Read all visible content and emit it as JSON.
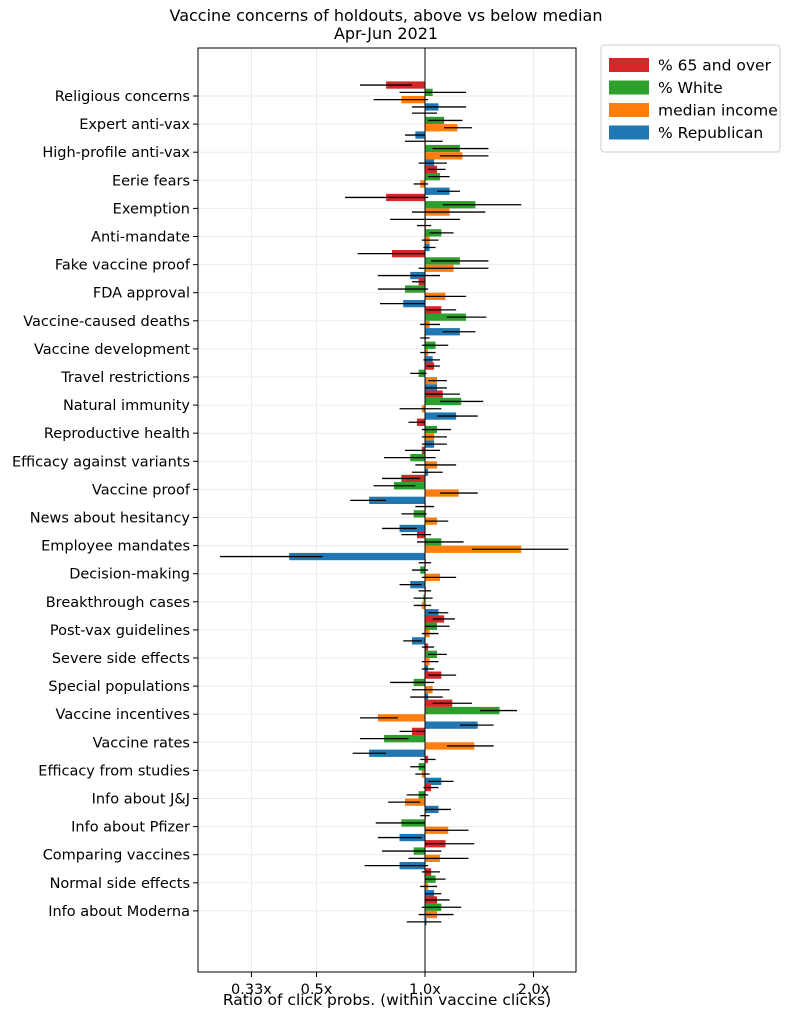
{
  "chart_data": {
    "type": "bar",
    "orientation": "horizontal",
    "title": "Vaccine concerns of holdouts, above vs below median",
    "subtitle": "Apr-Jun 2021",
    "xlabel": "Ratio of click probs. (within vaccine clicks)",
    "x_scale": "log2",
    "xlim": [
      0.25,
      2.7
    ],
    "xticks": [
      {
        "value": 0.33,
        "label": "0.33x"
      },
      {
        "value": 0.5,
        "label": "0.5x"
      },
      {
        "value": 1.0,
        "label": "1.0x"
      },
      {
        "value": 2.0,
        "label": "2.0x"
      }
    ],
    "baseline": 1.0,
    "grid": true,
    "legend_position": "outside-top-right",
    "categories": [
      "Religious concerns",
      "Expert anti-vax",
      "High-profile anti-vax",
      "Eerie fears",
      "Exemption",
      "Anti-mandate",
      "Fake vaccine proof",
      "FDA approval",
      "Vaccine-caused deaths",
      "Vaccine development",
      "Travel restrictions",
      "Natural immunity",
      "Reproductive health",
      "Efficacy against variants",
      "Vaccine proof",
      "News about hesitancy",
      "Employee mandates",
      "Decision-making",
      "Breakthrough cases",
      "Post-vax guidelines",
      "Severe side effects",
      "Special populations",
      "Vaccine incentives",
      "Vaccine rates",
      "Efficacy from studies",
      "Info about J&J",
      "Info about Pfizer",
      "Comparing vaccines",
      "Normal side effects",
      "Info about Moderna"
    ],
    "series": [
      {
        "name": "% 65 and over",
        "color": "#d62728",
        "values": [
          0.78,
          1.0,
          1.0,
          1.08,
          0.78,
          1.0,
          0.81,
          0.96,
          1.11,
          1.0,
          1.06,
          1.12,
          0.95,
          0.98,
          0.86,
          1.0,
          0.95,
          1.0,
          1.0,
          1.13,
          1.02,
          1.11,
          1.19,
          0.92,
          1.02,
          1.04,
          1.0,
          1.14,
          1.04,
          1.08
        ],
        "lo": [
          0.66,
          0.92,
          0.88,
          1.02,
          0.6,
          0.95,
          0.65,
          0.92,
          1.01,
          0.97,
          1.01,
          1.0,
          0.9,
          0.88,
          0.76,
          0.94,
          0.86,
          0.96,
          0.96,
          1.05,
          0.98,
          1.02,
          1.05,
          0.85,
          0.97,
          0.99,
          0.97,
          1.0,
          0.98,
          1.0
        ],
        "hi": [
          0.92,
          1.08,
          1.12,
          1.14,
          1.02,
          1.04,
          1.0,
          1.0,
          1.22,
          1.03,
          1.1,
          1.25,
          1.0,
          1.1,
          0.97,
          1.06,
          1.04,
          1.04,
          1.04,
          1.21,
          1.06,
          1.22,
          1.35,
          1.0,
          1.07,
          1.09,
          1.03,
          1.37,
          1.1,
          1.17
        ]
      },
      {
        "name": "% White",
        "color": "#2ca02c",
        "values": [
          1.05,
          1.13,
          1.25,
          1.1,
          1.38,
          1.11,
          1.25,
          0.88,
          1.3,
          1.07,
          0.96,
          1.26,
          1.08,
          0.91,
          0.82,
          0.93,
          1.11,
          0.97,
          0.99,
          1.08,
          1.08,
          0.93,
          1.61,
          0.77,
          0.96,
          0.96,
          0.86,
          0.93,
          1.07,
          1.11
        ],
        "lo": [
          0.85,
          1.02,
          1.05,
          1.02,
          1.12,
          1.03,
          1.04,
          0.74,
          1.15,
          0.98,
          0.91,
          1.1,
          0.98,
          0.77,
          0.72,
          0.86,
          0.95,
          0.92,
          0.93,
          1.0,
          1.02,
          0.8,
          1.42,
          0.66,
          0.91,
          0.89,
          0.73,
          0.76,
          1.0,
          0.98
        ],
        "hi": [
          1.3,
          1.27,
          1.5,
          1.17,
          1.85,
          1.2,
          1.5,
          1.02,
          1.48,
          1.16,
          1.01,
          1.45,
          1.18,
          1.07,
          0.94,
          1.01,
          1.28,
          1.02,
          1.05,
          1.17,
          1.15,
          1.06,
          1.8,
          0.9,
          1.0,
          1.02,
          1.0,
          1.11,
          1.14,
          1.26
        ]
      },
      {
        "name": "median income",
        "color": "#ff7f0e",
        "values": [
          0.86,
          1.23,
          1.27,
          0.97,
          1.17,
          1.03,
          1.2,
          1.14,
          1.03,
          1.02,
          1.08,
          0.98,
          1.06,
          1.08,
          1.24,
          1.08,
          1.85,
          1.1,
          0.98,
          1.03,
          1.03,
          1.05,
          0.74,
          1.37,
          0.98,
          0.88,
          1.16,
          1.1,
          1.02,
          1.08
        ],
        "lo": [
          0.72,
          1.13,
          1.1,
          0.93,
          0.92,
          0.98,
          0.96,
          1.0,
          0.97,
          0.97,
          1.02,
          0.85,
          0.98,
          0.94,
          1.1,
          1.0,
          1.35,
          0.98,
          0.93,
          0.98,
          0.98,
          0.92,
          0.66,
          1.15,
          0.94,
          0.79,
          1.0,
          0.9,
          0.97,
          0.96
        ],
        "hi": [
          1.02,
          1.35,
          1.5,
          1.02,
          1.47,
          1.09,
          1.5,
          1.3,
          1.1,
          1.07,
          1.15,
          1.11,
          1.15,
          1.22,
          1.4,
          1.16,
          2.5,
          1.22,
          1.04,
          1.09,
          1.09,
          1.17,
          0.84,
          1.55,
          1.03,
          0.97,
          1.32,
          1.32,
          1.08,
          1.2
        ]
      },
      {
        "name": "% Republican",
        "color": "#1f77b4",
        "values": [
          1.09,
          0.94,
          1.06,
          1.17,
          1.0,
          1.03,
          0.91,
          0.87,
          1.25,
          1.05,
          1.08,
          1.22,
          1.06,
          1.02,
          0.7,
          0.85,
          0.42,
          0.91,
          1.09,
          0.92,
          1.02,
          1.02,
          1.4,
          0.7,
          1.11,
          1.09,
          0.85,
          0.85,
          1.06,
          1.01
        ],
        "lo": [
          0.92,
          0.88,
          0.96,
          1.08,
          0.8,
          0.99,
          0.74,
          0.75,
          1.12,
          0.99,
          1.0,
          1.08,
          0.98,
          0.92,
          0.62,
          0.76,
          0.27,
          0.85,
          1.02,
          0.87,
          0.98,
          0.91,
          1.25,
          0.63,
          1.02,
          1.0,
          0.74,
          0.68,
          1.0,
          0.89
        ],
        "hi": [
          1.3,
          1.0,
          1.15,
          1.25,
          1.25,
          1.07,
          1.1,
          1.0,
          1.38,
          1.1,
          1.15,
          1.4,
          1.15,
          1.12,
          0.78,
          0.95,
          0.52,
          0.98,
          1.16,
          0.98,
          1.06,
          1.12,
          1.55,
          0.78,
          1.2,
          1.18,
          0.98,
          1.02,
          1.11,
          1.11
        ]
      }
    ]
  }
}
